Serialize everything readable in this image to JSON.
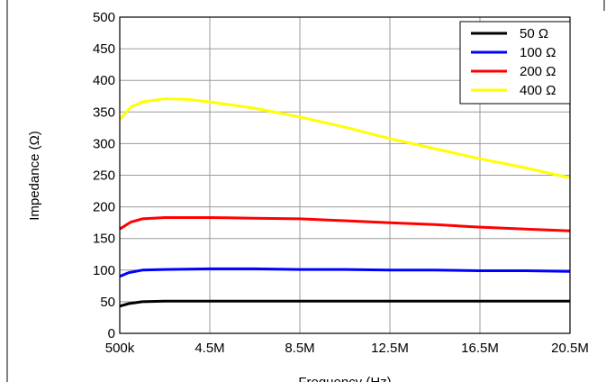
{
  "chart_data": {
    "type": "line",
    "title": "",
    "xlabel": "Frequency (Hz)",
    "ylabel": "Impedance (Ω)",
    "xlim": [
      0.5,
      20.5
    ],
    "ylim": [
      0,
      500
    ],
    "x_ticks": [
      {
        "value": 0.5,
        "label": "500k"
      },
      {
        "value": 4.5,
        "label": "4.5M"
      },
      {
        "value": 8.5,
        "label": "8.5M"
      },
      {
        "value": 12.5,
        "label": "12.5M"
      },
      {
        "value": 16.5,
        "label": "16.5M"
      },
      {
        "value": 20.5,
        "label": "20.5M"
      }
    ],
    "y_ticks": [
      0,
      50,
      100,
      150,
      200,
      250,
      300,
      350,
      400,
      450,
      500
    ],
    "grid": true,
    "legend_position": "top-right",
    "series": [
      {
        "name": "50 Ω",
        "color": "#000000",
        "x": [
          0.5,
          0.9,
          1.5,
          2.5,
          4.5,
          6.5,
          8.5,
          10.5,
          12.5,
          14.5,
          16.5,
          18.5,
          20.5
        ],
        "y": [
          43,
          47,
          50,
          51,
          51,
          51,
          51,
          51,
          51,
          51,
          51,
          51,
          51
        ]
      },
      {
        "name": "100 Ω",
        "color": "#0000ff",
        "x": [
          0.5,
          0.9,
          1.5,
          2.5,
          4.5,
          6.5,
          8.5,
          10.5,
          12.5,
          14.5,
          16.5,
          18.5,
          20.5
        ],
        "y": [
          90,
          96,
          100,
          101,
          102,
          102,
          101,
          101,
          100,
          100,
          99,
          99,
          98
        ]
      },
      {
        "name": "200 Ω",
        "color": "#ff0000",
        "x": [
          0.5,
          1.0,
          1.5,
          2.5,
          3.5,
          4.5,
          6.5,
          8.5,
          10.5,
          12.5,
          14.5,
          16.5,
          18.5,
          20.5
        ],
        "y": [
          165,
          176,
          181,
          183,
          183,
          183,
          182,
          181,
          178,
          175,
          172,
          168,
          165,
          162
        ]
      },
      {
        "name": "400 Ω",
        "color": "#ffff00",
        "x": [
          0.5,
          1.0,
          1.5,
          2.5,
          3.5,
          4.5,
          6.5,
          8.5,
          10.5,
          12.5,
          14.5,
          16.5,
          18.5,
          20.5
        ],
        "y": [
          338,
          358,
          366,
          371,
          370,
          366,
          356,
          342,
          326,
          308,
          292,
          276,
          262,
          246
        ]
      }
    ]
  }
}
